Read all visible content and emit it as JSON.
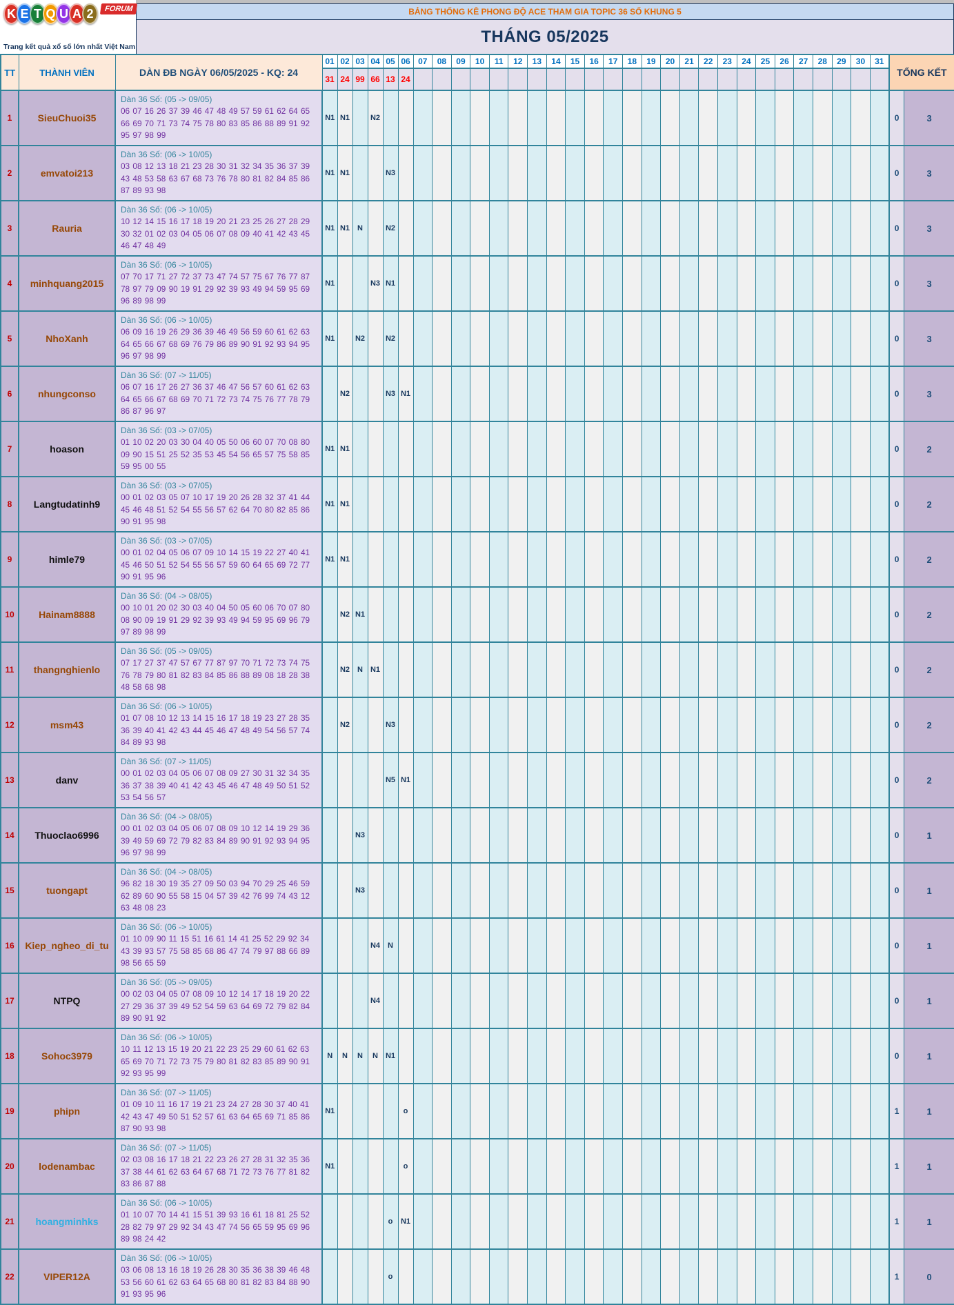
{
  "logo": {
    "letters": [
      {
        "ch": "K",
        "color": "#d93025"
      },
      {
        "ch": "E",
        "color": "#1a73e8"
      },
      {
        "ch": "T",
        "color": "#188038"
      },
      {
        "ch": "Q",
        "color": "#f29900"
      },
      {
        "ch": "U",
        "color": "#9334e6"
      },
      {
        "ch": "A",
        "color": "#d93025"
      },
      {
        "ch": "2",
        "color": "#8a6d1d"
      }
    ],
    "forum_badge": "FORUM",
    "tagline": "Trang kết quả xổ số lớn nhất Việt Nam"
  },
  "banner": {
    "title": "BẢNG THỐNG KÊ PHONG ĐỘ ACE THAM GIA TOPIC 36 SỐ KHUNG 5"
  },
  "month_title": "THÁNG 05/2025",
  "colors": {
    "border_teal": "#31849b",
    "banner_text": "#e36c0a",
    "banner_bg": "#c5d9f1",
    "navy": "#17365d",
    "day_header_blue": "#0070c0",
    "result_red": "#ff0000",
    "tt_red": "#c00000",
    "name_brown": "#974806",
    "name_blue": "#31b0e2",
    "dan_label_teal": "#31849b",
    "numbers_purple": "#7030a0",
    "mark_navy": "#17375d",
    "header_peach": "#fde9d9",
    "total_header_peach": "#fcd5b4",
    "mauve": "#c4b6d3",
    "lavender": "#e4dfec",
    "dan_bg": "#e3dcef",
    "day_odd_bg": "#daeef3",
    "day_even_bg": "#f1f1f1"
  },
  "table": {
    "headers": {
      "tt": "TT",
      "member": "THÀNH VIÊN",
      "dan": "DÀN ĐB NGÀY 06/05/2025 - KQ: 24",
      "total": "TỔNG KẾT"
    },
    "days": [
      "01",
      "02",
      "03",
      "04",
      "05",
      "06",
      "07",
      "08",
      "09",
      "10",
      "11",
      "12",
      "13",
      "14",
      "15",
      "16",
      "17",
      "18",
      "19",
      "20",
      "21",
      "22",
      "23",
      "24",
      "25",
      "26",
      "27",
      "28",
      "29",
      "30",
      "31"
    ],
    "day_results": {
      "01": "31",
      "02": "24",
      "03": "99",
      "04": "66",
      "05": "13",
      "06": "24"
    },
    "rows": [
      {
        "tt": "1",
        "member": "SieuChuoi35",
        "name_style": "brown",
        "dan_label": "Dàn 36 Số: (05 -> 09/05)",
        "numbers": "06 07 16 26 37 39 46 47 48 49 57 59 61 62 64 65 66 69 70 71 73 74 75 78 80 83 85 86 88 89 91 92 95 97 98 99",
        "marks": {
          "01": "N1",
          "02": "N1",
          "04": "N2"
        },
        "total": [
          "0",
          "3"
        ]
      },
      {
        "tt": "2",
        "member": "emvatoi213",
        "name_style": "brown",
        "dan_label": "Dàn 36 Số: (06 -> 10/05)",
        "numbers": "03 08 12 13 18 21 23 28 30 31 32 34 35 36 37 39 43 48 53 58 63 67 68 73 76 78 80 81 82 84 85 86 87 89 93 98",
        "marks": {
          "01": "N1",
          "02": "N1",
          "05": "N3"
        },
        "total": [
          "0",
          "3"
        ]
      },
      {
        "tt": "3",
        "member": "Rauria",
        "name_style": "brown",
        "dan_label": "Dàn 36 Số: (06 -> 10/05)",
        "numbers": "10 12 14 15 16 17 18 19 20 21 23 25 26 27 28 29 30 32 01 02 03 04 05 06 07 08 09 40 41 42 43 45 46 47 48 49",
        "marks": {
          "01": "N1",
          "02": "N1",
          "03": "N",
          "05": "N2"
        },
        "total": [
          "0",
          "3"
        ]
      },
      {
        "tt": "4",
        "member": "minhquang2015",
        "name_style": "brown",
        "dan_label": "Dàn 36 Số: (06 -> 10/05)",
        "numbers": "07 70 17 71 27 72 37 73 47 74 57 75 67 76 77 87 78 97 79 09 90 19 91 29 92 39 93 49 94 59 95 69 96 89 98 99",
        "marks": {
          "01": "N1",
          "04": "N3",
          "05": "N1"
        },
        "total": [
          "0",
          "3"
        ]
      },
      {
        "tt": "5",
        "member": "NhoXanh",
        "name_style": "brown",
        "dan_label": "Dàn 36 Số: (06 -> 10/05)",
        "numbers": "06 09 16 19 26 29 36 39 46 49 56 59 60 61 62 63 64 65 66 67 68 69 76 79 86 89 90 91 92 93 94 95 96 97 98 99",
        "marks": {
          "01": "N1",
          "03": "N2",
          "05": "N2"
        },
        "total": [
          "0",
          "3"
        ]
      },
      {
        "tt": "6",
        "member": "nhungconso",
        "name_style": "brown",
        "dan_label": "Dàn 36 Số: (07 -> 11/05)",
        "numbers": "06 07 16 17 26 27 36 37 46 47 56 57 60 61 62 63 64 65 66 67 68 69 70 71 72 73 74 75 76 77 78 79 86 87 96 97",
        "marks": {
          "02": "N2",
          "05": "N3",
          "06": "N1"
        },
        "total": [
          "0",
          "3"
        ]
      },
      {
        "tt": "7",
        "member": "hoason",
        "name_style": "black",
        "dan_label": "Dàn 36 Số: (03 -> 07/05)",
        "numbers": "01 10 02 20 03 30 04 40 05 50 06 60 07 70 08 80 09 90 15 51 25 52 35 53 45 54 56 65 57 75 58 85 59 95 00 55",
        "marks": {
          "01": "N1",
          "02": "N1"
        },
        "total": [
          "0",
          "2"
        ]
      },
      {
        "tt": "8",
        "member": "Langtudatinh9",
        "name_style": "black",
        "dan_label": "Dàn 36 Số: (03 -> 07/05)",
        "numbers": "00 01 02 03 05 07 10 17 19 20 26 28 32 37 41 44 45 46 48 51 52 54 55 56 57 62 64 70 80 82 85 86 90 91 95 98",
        "marks": {
          "01": "N1",
          "02": "N1"
        },
        "total": [
          "0",
          "2"
        ]
      },
      {
        "tt": "9",
        "member": "himle79",
        "name_style": "black",
        "dan_label": "Dàn 36 Số: (03 -> 07/05)",
        "numbers": "00 01 02 04 05 06 07 09 10 14 15 19 22 27 40 41 45 46 50 51 52 54 55 56 57 59 60 64 65 69 72 77 90 91 95 96",
        "marks": {
          "01": "N1",
          "02": "N1"
        },
        "total": [
          "0",
          "2"
        ]
      },
      {
        "tt": "10",
        "member": "Hainam8888",
        "name_style": "brown",
        "dan_label": "Dàn 36 Số: (04 -> 08/05)",
        "numbers": "00 10 01 20 02 30 03 40 04 50 05 60 06 70 07 80 08 90 09 19 91 29 92 39 93 49 94 59 95 69 96 79 97 89 98 99",
        "marks": {
          "02": "N2",
          "03": "N1"
        },
        "total": [
          "0",
          "2"
        ]
      },
      {
        "tt": "11",
        "member": "thangnghienlo",
        "name_style": "brown",
        "dan_label": "Dàn 36 Số: (05 -> 09/05)",
        "numbers": "07 17 27 37 47 57 67 77 87 97 70 71 72 73 74 75 76 78 79 80 81 82 83 84 85 86 88 89 08 18 28 38 48 58 68 98",
        "marks": {
          "02": "N2",
          "03": "N",
          "04": "N1"
        },
        "total": [
          "0",
          "2"
        ]
      },
      {
        "tt": "12",
        "member": "msm43",
        "name_style": "brown",
        "dan_label": "Dàn 36 Số: (06 -> 10/05)",
        "numbers": "01 07 08 10 12 13 14 15 16 17 18 19 23 27 28 35 36 39 40 41 42 43 44 45 46 47 48 49 54 56 57 74 84 89 93 98",
        "marks": {
          "02": "N2",
          "05": "N3"
        },
        "total": [
          "0",
          "2"
        ]
      },
      {
        "tt": "13",
        "member": "danv",
        "name_style": "black",
        "dan_label": "Dàn 36 Số: (07 -> 11/05)",
        "numbers": "00 01 02 03 04 05 06 07 08 09 27 30 31 32 34 35 36 37 38 39 40 41 42 43 45 46 47 48 49 50 51 52 53 54 56 57",
        "marks": {
          "05": "N5",
          "06": "N1"
        },
        "total": [
          "0",
          "2"
        ]
      },
      {
        "tt": "14",
        "member": "Thuoclao6996",
        "name_style": "black",
        "dan_label": "Dàn 36 Số: (04 -> 08/05)",
        "numbers": "00 01 02 03 04 05 06 07 08 09 10 12 14 19 29 36 39 49 59 69 72 79 82 83 84 89 90 91 92 93 94 95 96 97 98 99",
        "marks": {
          "03": "N3"
        },
        "total": [
          "0",
          "1"
        ]
      },
      {
        "tt": "15",
        "member": "tuongapt",
        "name_style": "brown",
        "dan_label": "Dàn 36 Số: (04 -> 08/05)",
        "numbers": "96 82 18 30 19 35 27 09 50 03 94 70 29 25 46 59 62 89 60 90 55 58 15 04 57 39 42 76 99 74 43 12 63 48 08 23",
        "marks": {
          "03": "N3"
        },
        "total": [
          "0",
          "1"
        ]
      },
      {
        "tt": "16",
        "member": "Kiep_ngheo_di_tu",
        "name_style": "brown",
        "dan_label": "Dàn 36 Số: (06 -> 10/05)",
        "numbers": "01 10 09 90 11 15 51 16 61 14 41 25 52 29 92 34 43 39 93 57 75 58 85 68 86 47 74 79 97 88 66 89 98 56 65 59",
        "marks": {
          "04": "N4",
          "05": "N"
        },
        "total": [
          "0",
          "1"
        ]
      },
      {
        "tt": "17",
        "member": "NTPQ",
        "name_style": "black",
        "dan_label": "Dàn 36 Số: (05 -> 09/05)",
        "numbers": "00 02 03 04 05 07 08 09 10 12 14 17 18 19 20 22 27 29 36 37 39 49 52 54 59 63 64 69 72 79 82 84 89 90 91 92",
        "marks": {
          "04": "N4"
        },
        "total": [
          "0",
          "1"
        ]
      },
      {
        "tt": "18",
        "member": "Sohoc3979",
        "name_style": "brown",
        "dan_label": "Dàn 36 Số: (06 -> 10/05)",
        "numbers": "10 11 12 13 15 19 20 21 22 23 25 29 60 61 62 63 65 69 70 71 72 73 75 79 80 81 82 83 85 89 90 91 92 93 95 99",
        "marks": {
          "01": "N",
          "02": "N",
          "03": "N",
          "04": "N",
          "05": "N1"
        },
        "total": [
          "0",
          "1"
        ]
      },
      {
        "tt": "19",
        "member": "phipn",
        "name_style": "brown",
        "dan_label": "Dàn 36 Số: (07 -> 11/05)",
        "numbers": "01 09 10 11 16 17 19 21 23 24 27 28 30 37 40 41 42 43 47 49 50 51 52 57 61 63 64 65 69 71 85 86 87 90 93 98",
        "marks": {
          "01": "N1",
          "06": "o"
        },
        "total": [
          "1",
          "1"
        ]
      },
      {
        "tt": "20",
        "member": "lodenambac",
        "name_style": "brown",
        "dan_label": "Dàn 36 Số: (07 -> 11/05)",
        "numbers": "02 03 08 16 17 18 21 22 23 26 27 28 31 32 35 36 37 38 44 61 62 63 64 67 68 71 72 73 76 77 81 82 83 86 87 88",
        "marks": {
          "01": "N1",
          "06": "o"
        },
        "total": [
          "1",
          "1"
        ]
      },
      {
        "tt": "21",
        "member": "hoangminhks",
        "name_style": "blue",
        "dan_label": "Dàn 36 Số: (06 -> 10/05)",
        "numbers": "01 10 07 70 14 41 15 51 39 93 16 61 18 81 25 52 28 82 79 97 29 92 34 43 47 74 56 65 59 95 69 96 89 98 24 42",
        "marks": {
          "05": "o",
          "06": "N1"
        },
        "total": [
          "1",
          "1"
        ]
      },
      {
        "tt": "22",
        "member": "VIPER12A",
        "name_style": "brown",
        "dan_label": "Dàn 36 Số: (06 -> 10/05)",
        "numbers": "03 06 08 13 16 18 19 26 28 30 35 36 38 39 46 48 53 56 60 61 62 63 64 65 68 80 81 82 83 84 88 90 91 93 95 96",
        "marks": {
          "05": "o"
        },
        "total": [
          "1",
          "0"
        ]
      }
    ]
  }
}
